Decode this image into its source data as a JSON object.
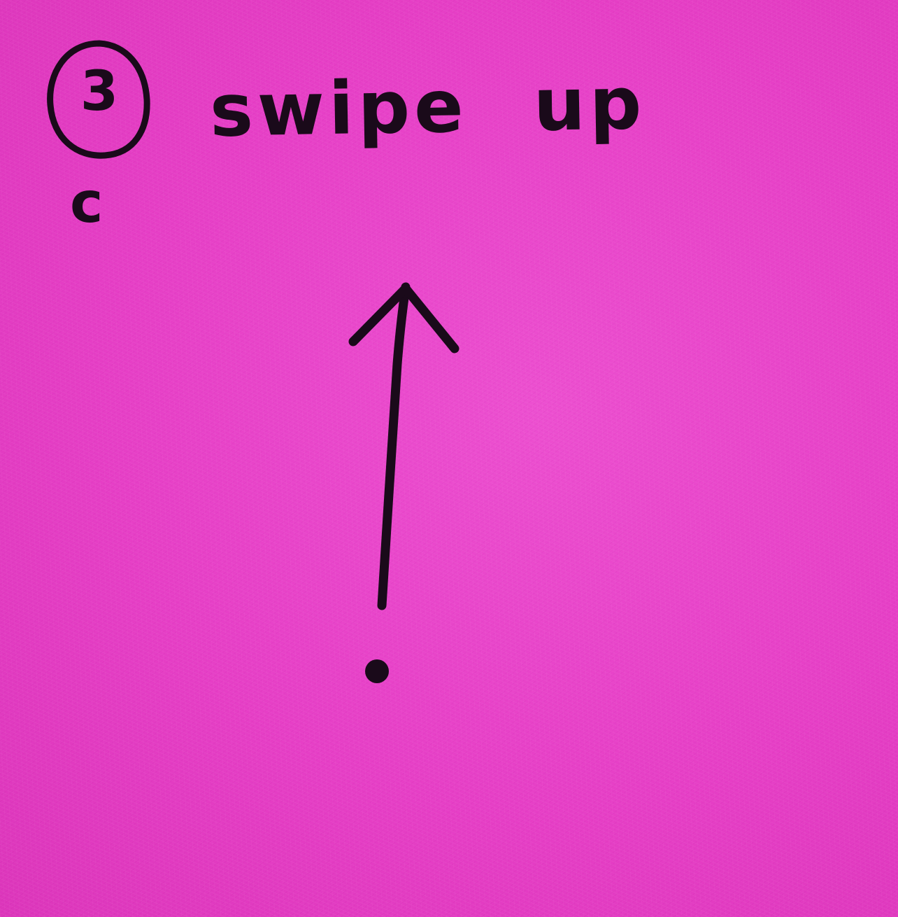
{
  "note": {
    "background_color": "#e63fc6",
    "ink_color": "#1a0a1a",
    "step_number": "3",
    "instruction": "swipe up",
    "sub_label": "c",
    "icons": {
      "step_circle": "circled-number-icon",
      "arrow": "arrow-up-icon",
      "start_dot": "dot-icon"
    }
  }
}
